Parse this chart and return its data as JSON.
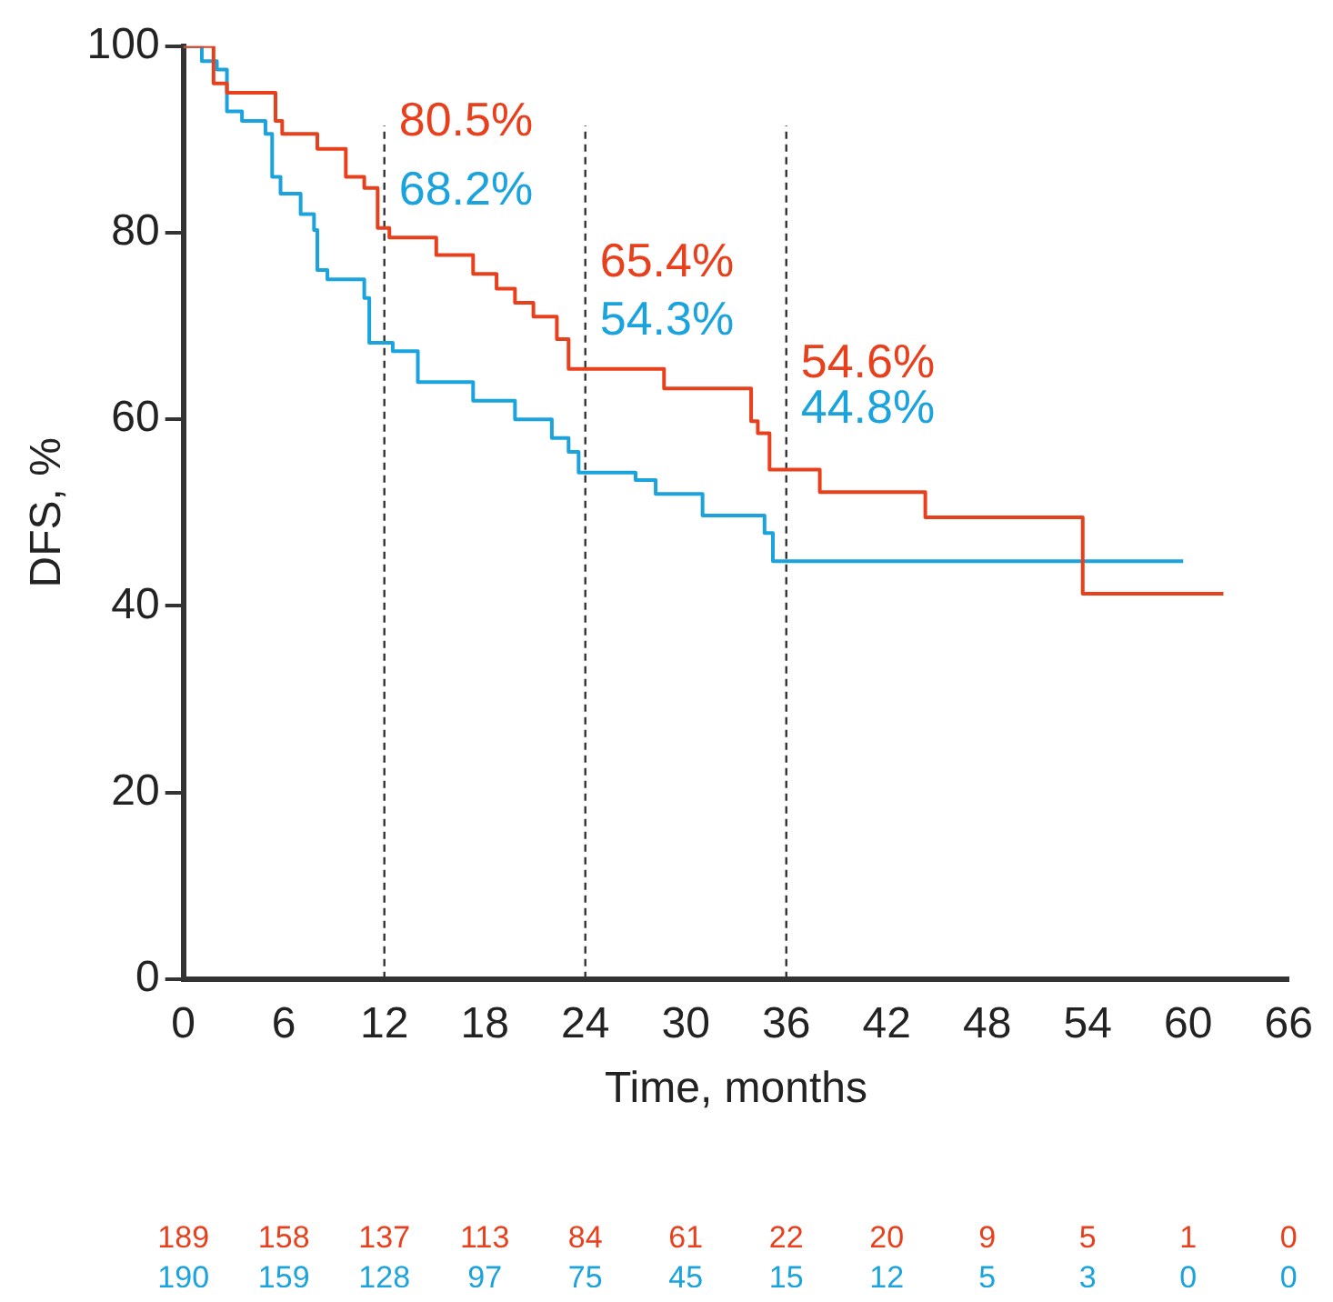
{
  "chart_data": {
    "type": "step",
    "xlabel": "Time, months",
    "ylabel": "DFS, %",
    "xlim": [
      0,
      66
    ],
    "xticks": [
      0,
      6,
      12,
      18,
      24,
      30,
      36,
      42,
      48,
      54,
      60,
      66
    ],
    "ylim": [
      0,
      100
    ],
    "yticks": [
      0,
      20,
      40,
      60,
      80,
      100
    ],
    "grid": false,
    "legend": false,
    "marker": "none",
    "series": [
      {
        "color": "#e8401c",
        "x": [
          0,
          1.8,
          2.6,
          5.5,
          5.9,
          8,
          9.7,
          10.8,
          11.6,
          12.3,
          15.1,
          17.3,
          18.7,
          19.8,
          20.9,
          22.3,
          23,
          28.7,
          33.9,
          34.3,
          35,
          35.2,
          38,
          44.3,
          53.7,
          62.1
        ],
        "values": [
          100,
          96,
          95,
          92,
          90.6,
          89,
          86,
          84.8,
          80.5,
          79.5,
          77.6,
          75.6,
          74,
          72.5,
          71,
          68.6,
          65.4,
          63.3,
          59.8,
          58.5,
          54.6,
          54.6,
          52.2,
          49.5,
          41.3,
          41.3
        ]
      },
      {
        "color": "#1aa3dc",
        "x": [
          0,
          1.1,
          2,
          2.6,
          3.5,
          4.9,
          5.3,
          5.8,
          7,
          7.8,
          8,
          8.6,
          10.8,
          11.1,
          12.5,
          14,
          17.3,
          19.8,
          22,
          23,
          23.6,
          27,
          28.2,
          31,
          34.7,
          35.2,
          59.7
        ],
        "values": [
          100,
          98.4,
          97.5,
          93,
          92,
          90.6,
          86,
          84.2,
          82,
          80.3,
          76,
          75,
          73,
          68.2,
          67.3,
          64,
          62,
          60,
          58,
          56.5,
          54.3,
          53.5,
          52,
          49.7,
          47.8,
          44.8,
          44.8
        ]
      }
    ],
    "ref_lines": [
      {
        "axis": "x",
        "value": 12,
        "color": "#333333",
        "line_style": "dashed"
      },
      {
        "axis": "x",
        "value": 24,
        "color": "#333333",
        "line_style": "dashed"
      },
      {
        "axis": "x",
        "value": 36,
        "color": "#333333",
        "line_style": "dashed"
      }
    ],
    "annotations": [
      {
        "text": "80.5%",
        "x": 12,
        "y": 80.5
      },
      {
        "text": "68.2%",
        "x": 12,
        "y": 68.2
      },
      {
        "text": "65.4%",
        "x": 24,
        "y": 65.4
      },
      {
        "text": "54.3%",
        "x": 24,
        "y": 54.3
      },
      {
        "text": "54.6%",
        "x": 36,
        "y": 54.6
      },
      {
        "text": "44.8%",
        "x": 36,
        "y": 44.8
      },
      "189",
      "158",
      "137",
      "113",
      "84",
      "61",
      "22",
      "20",
      "9",
      "5",
      "1",
      "0",
      "190",
      "159",
      "128",
      "97",
      "75",
      "45",
      "15",
      "12",
      "5",
      "3",
      "0",
      "0"
    ]
  }
}
